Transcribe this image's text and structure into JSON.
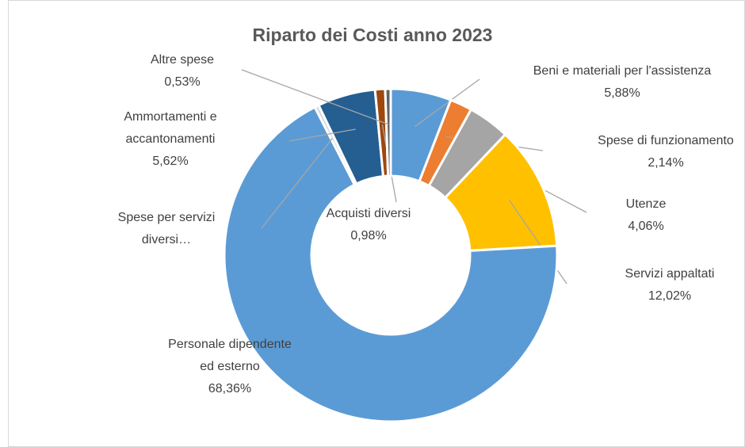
{
  "chart_data": {
    "type": "donut",
    "title": "Riparto dei Costi anno  2023",
    "categories": [
      "Beni e materiali per l'assistenza",
      "Spese di funzionamento",
      "Utenze",
      "Servizi appaltati",
      "Personale dipendente ed esterno",
      "Spese per servizi diversi…",
      "Ammortamenti e accantonamenti",
      "Acquisti diversi",
      "Altre spese"
    ],
    "values": [
      5.88,
      2.14,
      4.06,
      12.02,
      68.36,
      0.41,
      5.62,
      0.98,
      0.53
    ],
    "value_labels": [
      "5,88%",
      "2,14%",
      "4,06%",
      "12,02%",
      "68,36%",
      null,
      "5,62%",
      "0,98%",
      "0,53%"
    ],
    "colors": [
      "#5b9bd5",
      "#ed7d31",
      "#a5a5a5",
      "#ffc000",
      "#5b9bd5",
      "#d9d9d9",
      "#255e91",
      "#9e480e",
      "#636363"
    ]
  }
}
